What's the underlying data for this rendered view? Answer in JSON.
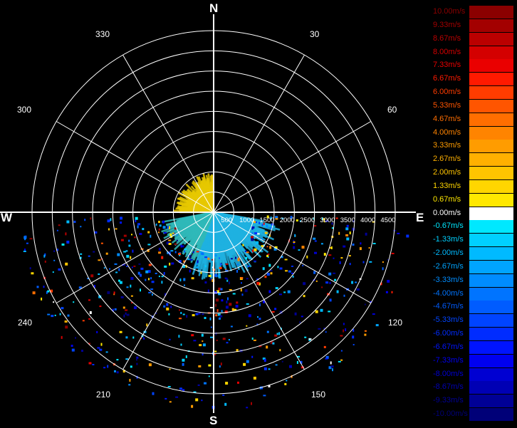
{
  "compass": {
    "n": "N",
    "e": "E",
    "s": "S",
    "w": "W"
  },
  "bearings": {
    "b30": "30",
    "b60": "60",
    "b120": "120",
    "b150": "150",
    "b210": "210",
    "b240": "240",
    "b300": "300",
    "b330": "330"
  },
  "chart_data": {
    "type": "polar-radar-ppi",
    "ring_labels": [
      "500",
      "1000",
      "1500",
      "2000",
      "2500",
      "3000",
      "3500",
      "4000",
      "4500"
    ],
    "grid": true,
    "sectors": [
      {
        "from_deg": 270,
        "to_deg": 360,
        "speed": 0.67,
        "range_max": 1000,
        "color": "#e6c800"
      },
      {
        "from_deg": 100,
        "to_deg": 200,
        "speed": -2.0,
        "range_max": 1700,
        "color": "#1fb1e0"
      },
      {
        "from_deg": 200,
        "to_deg": 260,
        "speed": -1.33,
        "range_max": 1400,
        "color": "#2fb8b8"
      }
    ],
    "scatter_range": [
      1000,
      4900
    ],
    "legend": [
      {
        "label": "10.00m/s",
        "color": "#8b0000"
      },
      {
        "label": "9.33m/s",
        "color": "#a30000"
      },
      {
        "label": "8.67m/s",
        "color": "#bb0000"
      },
      {
        "label": "8.00m/s",
        "color": "#d40000"
      },
      {
        "label": "7.33m/s",
        "color": "#ea0000"
      },
      {
        "label": "6.67m/s",
        "color": "#ff1a00"
      },
      {
        "label": "6.00m/s",
        "color": "#ff3c00"
      },
      {
        "label": "5.33m/s",
        "color": "#ff5500"
      },
      {
        "label": "4.67m/s",
        "color": "#ff6e00"
      },
      {
        "label": "4.00m/s",
        "color": "#ff8400"
      },
      {
        "label": "3.33m/s",
        "color": "#ff9c00"
      },
      {
        "label": "2.67m/s",
        "color": "#ffb000"
      },
      {
        "label": "2.00m/s",
        "color": "#ffc400"
      },
      {
        "label": "1.33m/s",
        "color": "#ffd600"
      },
      {
        "label": "0.67m/s",
        "color": "#ffe800"
      },
      {
        "label": "0.00m/s",
        "color": "#ffffff"
      },
      {
        "label": "-0.67m/s",
        "color": "#00e8ff"
      },
      {
        "label": "-1.33m/s",
        "color": "#00d0ff"
      },
      {
        "label": "-2.00m/s",
        "color": "#00baff"
      },
      {
        "label": "-2.67m/s",
        "color": "#00a4ff"
      },
      {
        "label": "-3.33m/s",
        "color": "#008cff"
      },
      {
        "label": "-4.00m/s",
        "color": "#0074ff"
      },
      {
        "label": "-4.67m/s",
        "color": "#005cff"
      },
      {
        "label": "-5.33m/s",
        "color": "#0044ff"
      },
      {
        "label": "-6.00m/s",
        "color": "#002cff"
      },
      {
        "label": "-6.67m/s",
        "color": "#0014ff"
      },
      {
        "label": "-7.33m/s",
        "color": "#0000f0"
      },
      {
        "label": "-8.00m/s",
        "color": "#0000d2"
      },
      {
        "label": "-8.67m/s",
        "color": "#0000b4"
      },
      {
        "label": "-9.33m/s",
        "color": "#000096"
      },
      {
        "label": "-10.00m/s",
        "color": "#000078"
      }
    ]
  }
}
